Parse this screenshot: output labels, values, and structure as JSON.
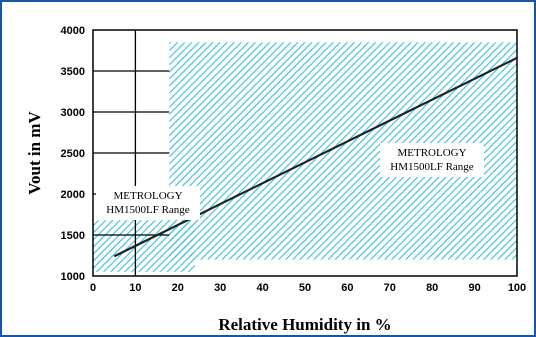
{
  "chart_data": {
    "type": "line",
    "title": "",
    "xlabel": "Relative Humidity in %",
    "ylabel": "Vout in mV",
    "xlim": [
      0,
      100
    ],
    "ylim": [
      1000,
      4000
    ],
    "x_ticks": [
      0,
      10,
      20,
      30,
      40,
      50,
      60,
      70,
      80,
      90,
      100
    ],
    "y_ticks": [
      1000,
      1500,
      2000,
      2500,
      3000,
      3500,
      4000
    ],
    "grid": true,
    "series": [
      {
        "x": [
          5,
          100
        ],
        "y": [
          1240,
          3660
        ]
      }
    ],
    "regions": [
      {
        "label_lines": [
          "METROLOGY",
          "HM1500LF Range"
        ],
        "x": [
          0,
          24
        ],
        "y": [
          1050,
          1680
        ]
      },
      {
        "label_lines": [
          "METROLOGY",
          "HM1500LF Range"
        ],
        "x": [
          18,
          100
        ],
        "y": [
          1200,
          3850
        ]
      }
    ],
    "colors": {
      "frame": "#1457a6",
      "hatch": "#38bfd9",
      "line": "#222222"
    }
  }
}
